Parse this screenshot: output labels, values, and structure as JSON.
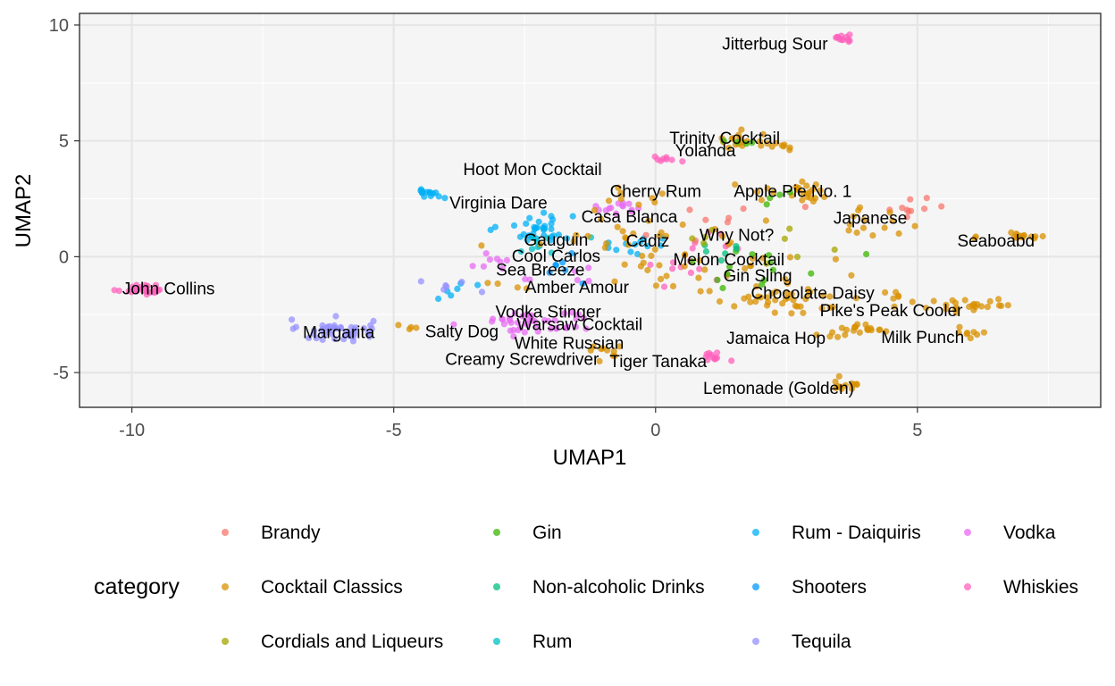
{
  "chart_data": {
    "type": "scatter",
    "xlabel": "UMAP1",
    "ylabel": "UMAP2",
    "xlim": [
      -11.0,
      8.5
    ],
    "ylim": [
      -6.5,
      10.5
    ],
    "xticks": [
      {
        "value": -10,
        "label": "-10"
      },
      {
        "value": -5,
        "label": "-5"
      },
      {
        "value": 0,
        "label": "0"
      },
      {
        "value": 5,
        "label": "5"
      }
    ],
    "yticks": [
      {
        "value": -5,
        "label": "-5"
      },
      {
        "value": 0,
        "label": "0"
      },
      {
        "value": 5,
        "label": "5"
      },
      {
        "value": 10,
        "label": "10"
      }
    ],
    "grid": true,
    "legend": {
      "title": "category",
      "position": "bottom",
      "columns": [
        [
          "Brandy",
          "Cocktail Classics",
          "Cordials and Liqueurs"
        ],
        [
          "Gin",
          "Non-alcoholic Drinks",
          "Rum"
        ],
        [
          "Rum - Daiquiris",
          "Shooters",
          "Tequila"
        ],
        [
          "Vodka",
          "Whiskies"
        ]
      ]
    },
    "categories": [
      {
        "name": "Brandy",
        "color": "#F8766D"
      },
      {
        "name": "Cocktail Classics",
        "color": "#D89000"
      },
      {
        "name": "Cordials and Liqueurs",
        "color": "#A3A500"
      },
      {
        "name": "Gin",
        "color": "#39B600"
      },
      {
        "name": "Non-alcoholic Drinks",
        "color": "#00BF7D"
      },
      {
        "name": "Rum",
        "color": "#00BFC4"
      },
      {
        "name": "Rum - Daiquiris",
        "color": "#00B0F6"
      },
      {
        "name": "Shooters",
        "color": "#0099FF"
      },
      {
        "name": "Tequila",
        "color": "#9590FF"
      },
      {
        "name": "Vodka",
        "color": "#E76BF3"
      },
      {
        "name": "Whiskies",
        "color": "#FF62BC"
      }
    ],
    "clusters": [
      {
        "cat": 10,
        "x": -9.8,
        "y": -1.4,
        "n": 28,
        "sx": 0.25,
        "sy": 0.12
      },
      {
        "cat": 8,
        "x": -6.1,
        "y": -3.2,
        "n": 45,
        "sx": 0.35,
        "sy": 0.25
      },
      {
        "cat": 10,
        "x": 3.55,
        "y": 9.45,
        "n": 12,
        "sx": 0.12,
        "sy": 0.12
      },
      {
        "cat": 6,
        "x": -4.3,
        "y": 2.75,
        "n": 14,
        "sx": 0.15,
        "sy": 0.12
      },
      {
        "cat": 6,
        "x": -2.3,
        "y": 1.2,
        "n": 34,
        "sx": 0.35,
        "sy": 0.35
      },
      {
        "cat": 5,
        "x": -2.2,
        "y": 0.6,
        "n": 8,
        "sx": 0.3,
        "sy": 0.3
      },
      {
        "cat": 7,
        "x": -1.6,
        "y": -0.5,
        "n": 7,
        "sx": 0.25,
        "sy": 0.25
      },
      {
        "cat": 6,
        "x": -0.3,
        "y": 0.4,
        "n": 12,
        "sx": 0.4,
        "sy": 0.4
      },
      {
        "cat": 6,
        "x": -3.8,
        "y": -1.3,
        "n": 6,
        "sx": 0.3,
        "sy": 0.2
      },
      {
        "cat": 9,
        "x": -2.3,
        "y": -2.8,
        "n": 45,
        "sx": 0.55,
        "sy": 0.3
      },
      {
        "cat": 9,
        "x": -3.2,
        "y": -0.4,
        "n": 8,
        "sx": 0.25,
        "sy": 0.2
      },
      {
        "cat": 9,
        "x": -0.6,
        "y": 2.1,
        "n": 14,
        "sx": 0.25,
        "sy": 0.15
      },
      {
        "cat": 9,
        "x": -1.5,
        "y": -1.0,
        "n": 6,
        "sx": 0.4,
        "sy": 0.3
      },
      {
        "cat": 8,
        "x": -3.9,
        "y": -1.3,
        "n": 6,
        "sx": 0.4,
        "sy": 0.2
      },
      {
        "cat": 10,
        "x": 1.1,
        "y": 0.5,
        "n": 8,
        "sx": 0.3,
        "sy": 0.3
      },
      {
        "cat": 10,
        "x": 0.2,
        "y": 4.25,
        "n": 8,
        "sx": 0.15,
        "sy": 0.08
      },
      {
        "cat": 10,
        "x": 1.15,
        "y": -4.3,
        "n": 12,
        "sx": 0.18,
        "sy": 0.12
      },
      {
        "cat": 10,
        "x": 0.4,
        "y": -0.7,
        "n": 8,
        "sx": 0.35,
        "sy": 0.3
      },
      {
        "cat": 0,
        "x": 4.95,
        "y": 2.1,
        "n": 10,
        "sx": 0.2,
        "sy": 0.22
      },
      {
        "cat": 0,
        "x": 1.2,
        "y": 1.5,
        "n": 8,
        "sx": 0.8,
        "sy": 0.6
      },
      {
        "cat": 1,
        "x": 7.0,
        "y": 0.9,
        "n": 16,
        "sx": 0.35,
        "sy": 0.12
      },
      {
        "cat": 1,
        "x": 6.0,
        "y": -2.1,
        "n": 24,
        "sx": 0.45,
        "sy": 0.2
      },
      {
        "cat": 1,
        "x": 3.8,
        "y": -3.2,
        "n": 22,
        "sx": 0.45,
        "sy": 0.15
      },
      {
        "cat": 1,
        "x": 5.9,
        "y": -3.3,
        "n": 8,
        "sx": 0.2,
        "sy": 0.1
      },
      {
        "cat": 1,
        "x": 3.7,
        "y": -5.5,
        "n": 12,
        "sx": 0.18,
        "sy": 0.12
      },
      {
        "cat": 1,
        "x": 2.0,
        "y": 5.0,
        "n": 24,
        "sx": 0.45,
        "sy": 0.25
      },
      {
        "cat": 1,
        "x": 2.8,
        "y": 2.8,
        "n": 22,
        "sx": 0.5,
        "sy": 0.2
      },
      {
        "cat": 1,
        "x": 3.9,
        "y": 1.3,
        "n": 16,
        "sx": 0.6,
        "sy": 0.6
      },
      {
        "cat": 1,
        "x": 2.5,
        "y": -1.7,
        "n": 40,
        "sx": 0.8,
        "sy": 0.4
      },
      {
        "cat": 1,
        "x": 0.8,
        "y": 0.0,
        "n": 40,
        "sx": 1.0,
        "sy": 0.9
      },
      {
        "cat": 1,
        "x": -1.0,
        "y": 0.5,
        "n": 14,
        "sx": 0.8,
        "sy": 0.6
      },
      {
        "cat": 1,
        "x": -0.6,
        "y": 2.5,
        "n": 8,
        "sx": 0.5,
        "sy": 0.3
      },
      {
        "cat": 1,
        "x": -1.0,
        "y": -4.1,
        "n": 10,
        "sx": 0.3,
        "sy": 0.2
      },
      {
        "cat": 1,
        "x": -4.6,
        "y": -3.1,
        "n": 4,
        "sx": 0.2,
        "sy": 0.1
      },
      {
        "cat": 1,
        "x": -2.9,
        "y": -1.3,
        "n": 4,
        "sx": 0.4,
        "sy": 0.1
      },
      {
        "cat": 1,
        "x": 4.6,
        "y": -1.5,
        "n": 6,
        "sx": 0.2,
        "sy": 0.2
      },
      {
        "cat": 3,
        "x": 2.0,
        "y": -0.4,
        "n": 14,
        "sx": 0.7,
        "sy": 0.5
      },
      {
        "cat": 3,
        "x": 1.5,
        "y": 4.9,
        "n": 4,
        "sx": 0.2,
        "sy": 0.1
      },
      {
        "cat": 3,
        "x": 2.3,
        "y": 2.4,
        "n": 4,
        "sx": 0.3,
        "sy": 0.2
      },
      {
        "cat": 4,
        "x": 1.4,
        "y": 0.4,
        "n": 6,
        "sx": 0.4,
        "sy": 0.3
      },
      {
        "cat": 2,
        "x": 2.5,
        "y": 0.5,
        "n": 5,
        "sx": 0.5,
        "sy": 0.4
      },
      {
        "cat": 2,
        "x": 1.0,
        "y": 0.9,
        "n": 4,
        "sx": 0.3,
        "sy": 0.3
      }
    ],
    "annotations": [
      {
        "text": "Jitterbug Sour",
        "x": 2.28,
        "y": 9.2
      },
      {
        "text": "Trinity Cocktail",
        "x": 1.32,
        "y": 5.15
      },
      {
        "text": "Yolanda",
        "x": 0.95,
        "y": 4.6
      },
      {
        "text": "Hoot Mon Cocktail",
        "x": -2.35,
        "y": 3.8
      },
      {
        "text": "Cherry Rum",
        "x": 0.0,
        "y": 2.85
      },
      {
        "text": "Apple Pie No. 1",
        "x": 2.62,
        "y": 2.85
      },
      {
        "text": "Virginia Dare",
        "x": -3.0,
        "y": 2.35
      },
      {
        "text": "Casa Blanca",
        "x": -0.5,
        "y": 1.75
      },
      {
        "text": "Japanese",
        "x": 4.1,
        "y": 1.7
      },
      {
        "text": "Gauguin",
        "x": -1.9,
        "y": 0.75
      },
      {
        "text": "Cadiz",
        "x": -0.15,
        "y": 0.7
      },
      {
        "text": "Why Not?",
        "x": 1.55,
        "y": 0.95
      },
      {
        "text": "Seaboabd",
        "x": 6.5,
        "y": 0.7
      },
      {
        "text": "Cool Carlos",
        "x": -1.9,
        "y": 0.05
      },
      {
        "text": "Melon Cocktail",
        "x": 1.4,
        "y": -0.1
      },
      {
        "text": "Sea Breeze",
        "x": -2.2,
        "y": -0.55
      },
      {
        "text": "Gin Sling",
        "x": 1.95,
        "y": -0.8
      },
      {
        "text": "John Collins",
        "x": -9.3,
        "y": -1.35
      },
      {
        "text": "Amber Amour",
        "x": -1.5,
        "y": -1.3
      },
      {
        "text": "Chocolate Daisy",
        "x": 3.0,
        "y": -1.55
      },
      {
        "text": "Pike's Peak Cooler",
        "x": 4.5,
        "y": -2.3
      },
      {
        "text": "Vodka Stinger",
        "x": -2.05,
        "y": -2.35
      },
      {
        "text": "Warsaw Cocktail",
        "x": -1.45,
        "y": -2.9
      },
      {
        "text": "Margarita",
        "x": -6.05,
        "y": -3.25
      },
      {
        "text": "Salty Dog",
        "x": -3.7,
        "y": -3.2
      },
      {
        "text": "Jamaica Hop",
        "x": 2.3,
        "y": -3.5
      },
      {
        "text": "Milk Punch",
        "x": 5.1,
        "y": -3.45
      },
      {
        "text": "White Russian",
        "x": -1.65,
        "y": -3.7
      },
      {
        "text": "Creamy Screwdriver",
        "x": -2.55,
        "y": -4.4
      },
      {
        "text": "Tiger Tanaka",
        "x": 0.05,
        "y": -4.5
      },
      {
        "text": "Lemonade (Golden)",
        "x": 2.35,
        "y": -5.65
      }
    ]
  }
}
